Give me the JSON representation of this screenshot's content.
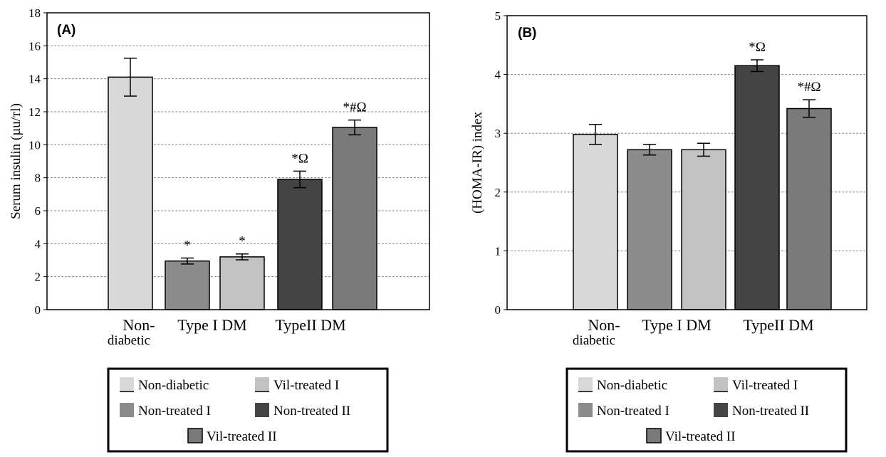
{
  "chart_data": [
    {
      "type": "bar",
      "panel_label": "(A)",
      "ylabel": "Serum insulin (µu/тl)",
      "ylim": [
        0,
        18
      ],
      "yticks": [
        0,
        2,
        4,
        6,
        8,
        10,
        12,
        14,
        16,
        18
      ],
      "grid": "horizontal dashed",
      "x_group_labels": {
        "non_diabetic_top": "Non-",
        "non_diabetic_bottom": "diabetic",
        "type1": "Type I DM",
        "type2": "TypeII DM"
      },
      "bars": [
        {
          "series": "Non-diabetic",
          "value": 14.1,
          "error": 1.15,
          "annotation": ""
        },
        {
          "series": "Non-treated I",
          "value": 2.95,
          "error": 0.18,
          "annotation": "*"
        },
        {
          "series": "Vil-treated I",
          "value": 3.2,
          "error": 0.18,
          "annotation": "*"
        },
        {
          "series": "Non-treated II",
          "value": 7.9,
          "error": 0.5,
          "annotation": "*Ω"
        },
        {
          "series": "Vil-treated II",
          "value": 11.05,
          "error": 0.45,
          "annotation": "*#Ω"
        }
      ]
    },
    {
      "type": "bar",
      "panel_label": "(B)",
      "ylabel": "(HOMA-IR) index",
      "ylim": [
        0,
        5
      ],
      "yticks": [
        0,
        1,
        2,
        3,
        4,
        5
      ],
      "grid": "horizontal dashed",
      "x_group_labels": {
        "non_diabetic_top": "Non-",
        "non_diabetic_bottom": "diabetic",
        "type1": "Type I DM",
        "type2": "TypeII DM"
      },
      "bars": [
        {
          "series": "Non-diabetic",
          "value": 2.98,
          "error": 0.17,
          "annotation": ""
        },
        {
          "series": "Non-treated I",
          "value": 2.72,
          "error": 0.09,
          "annotation": ""
        },
        {
          "series": "Vil-treated I",
          "value": 2.72,
          "error": 0.11,
          "annotation": ""
        },
        {
          "series": "Non-treated II",
          "value": 4.15,
          "error": 0.1,
          "annotation": "*Ω"
        },
        {
          "series": "Vil-treated II",
          "value": 3.42,
          "error": 0.15,
          "annotation": "*#Ω"
        }
      ]
    }
  ],
  "legend": {
    "items": [
      {
        "label": "Non-diabetic",
        "color": "#d8d8d8"
      },
      {
        "label": "Vil-treated I",
        "color": "#c2c2c2"
      },
      {
        "label": "Non-treated I",
        "color": "#8c8c8c"
      },
      {
        "label": "Non-treated II",
        "color": "#444444"
      },
      {
        "label": "Vil-treated II",
        "color": "#7a7a7a"
      }
    ]
  },
  "colors": {
    "Non-diabetic": "#d8d8d8",
    "Non-treated I": "#8c8c8c",
    "Vil-treated I": "#c2c2c2",
    "Non-treated II": "#444444",
    "Vil-treated II": "#7a7a7a"
  }
}
